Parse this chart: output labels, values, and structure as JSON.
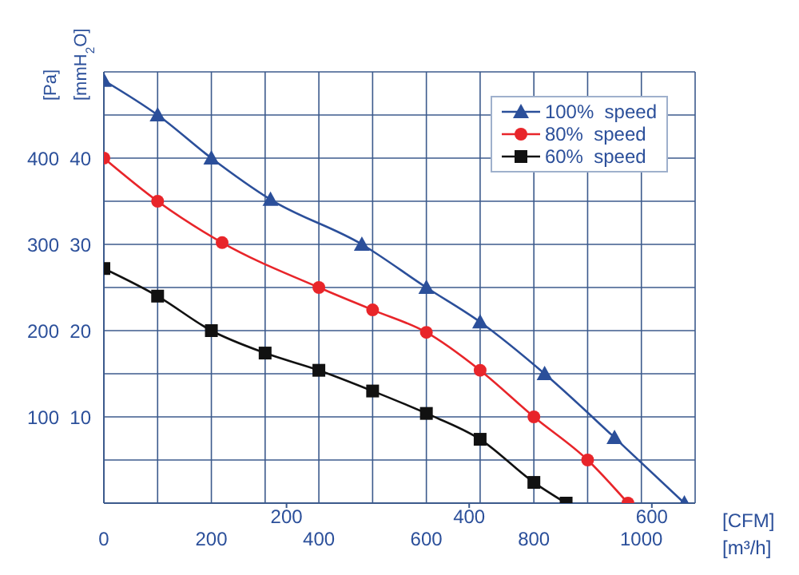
{
  "chart_data": {
    "type": "line",
    "ylabel": "[Pa]",
    "y2label": "[mmH$_{2}$O]",
    "xlabel": "[m³/h]",
    "x2label": "[CFM]",
    "xlim": [
      0,
      1100
    ],
    "xticks": [
      0,
      {
        "value": 100,
        "label": null
      },
      200,
      {
        "value": 300,
        "label": null
      },
      400,
      {
        "value": 500,
        "label": null
      },
      600,
      {
        "value": 700,
        "label": null
      },
      800,
      {
        "value": 900,
        "label": null
      },
      1000,
      {
        "value": 1100,
        "label": null
      }
    ],
    "x2lim": [
      0,
      647.4
    ],
    "x2ticks": [
      200,
      400,
      600
    ],
    "ylim": [
      0,
      500
    ],
    "yticks": [
      {
        "value": 0,
        "label": null
      },
      {
        "value": 50,
        "label": null
      },
      100,
      {
        "value": 150,
        "label": null
      },
      200,
      {
        "value": 250,
        "label": null
      },
      300,
      {
        "value": 350,
        "label": null
      },
      400,
      {
        "value": 450,
        "label": null
      },
      {
        "value": 500,
        "label": null
      }
    ],
    "y2lim": [
      0,
      50
    ],
    "y2ticks": [
      10,
      20,
      30,
      40
    ],
    "grid": true,
    "legend": "top right",
    "line_style": "solid",
    "series": [
      {
        "name": "100%  speed",
        "color": "#2b4f9a",
        "marker": "triangle",
        "x": [
          0,
          100,
          200,
          310,
          480,
          600,
          700,
          820,
          950,
          1080
        ],
        "values": [
          490,
          450,
          400,
          352,
          300,
          250,
          210,
          150,
          76,
          0
        ]
      },
      {
        "name": "80%  speed",
        "color": "#e8252a",
        "marker": "circle",
        "x": [
          0,
          100,
          220,
          400,
          500,
          600,
          700,
          800,
          900,
          975
        ],
        "values": [
          400,
          350,
          302,
          250,
          224,
          198,
          154,
          100,
          50,
          0
        ]
      },
      {
        "name": "60%  speed",
        "color": "#111111",
        "marker": "square",
        "x": [
          0,
          100,
          200,
          300,
          400,
          500,
          600,
          700,
          800,
          860
        ],
        "values": [
          272,
          240,
          200,
          174,
          154,
          130,
          104,
          74,
          24,
          0
        ]
      }
    ]
  }
}
